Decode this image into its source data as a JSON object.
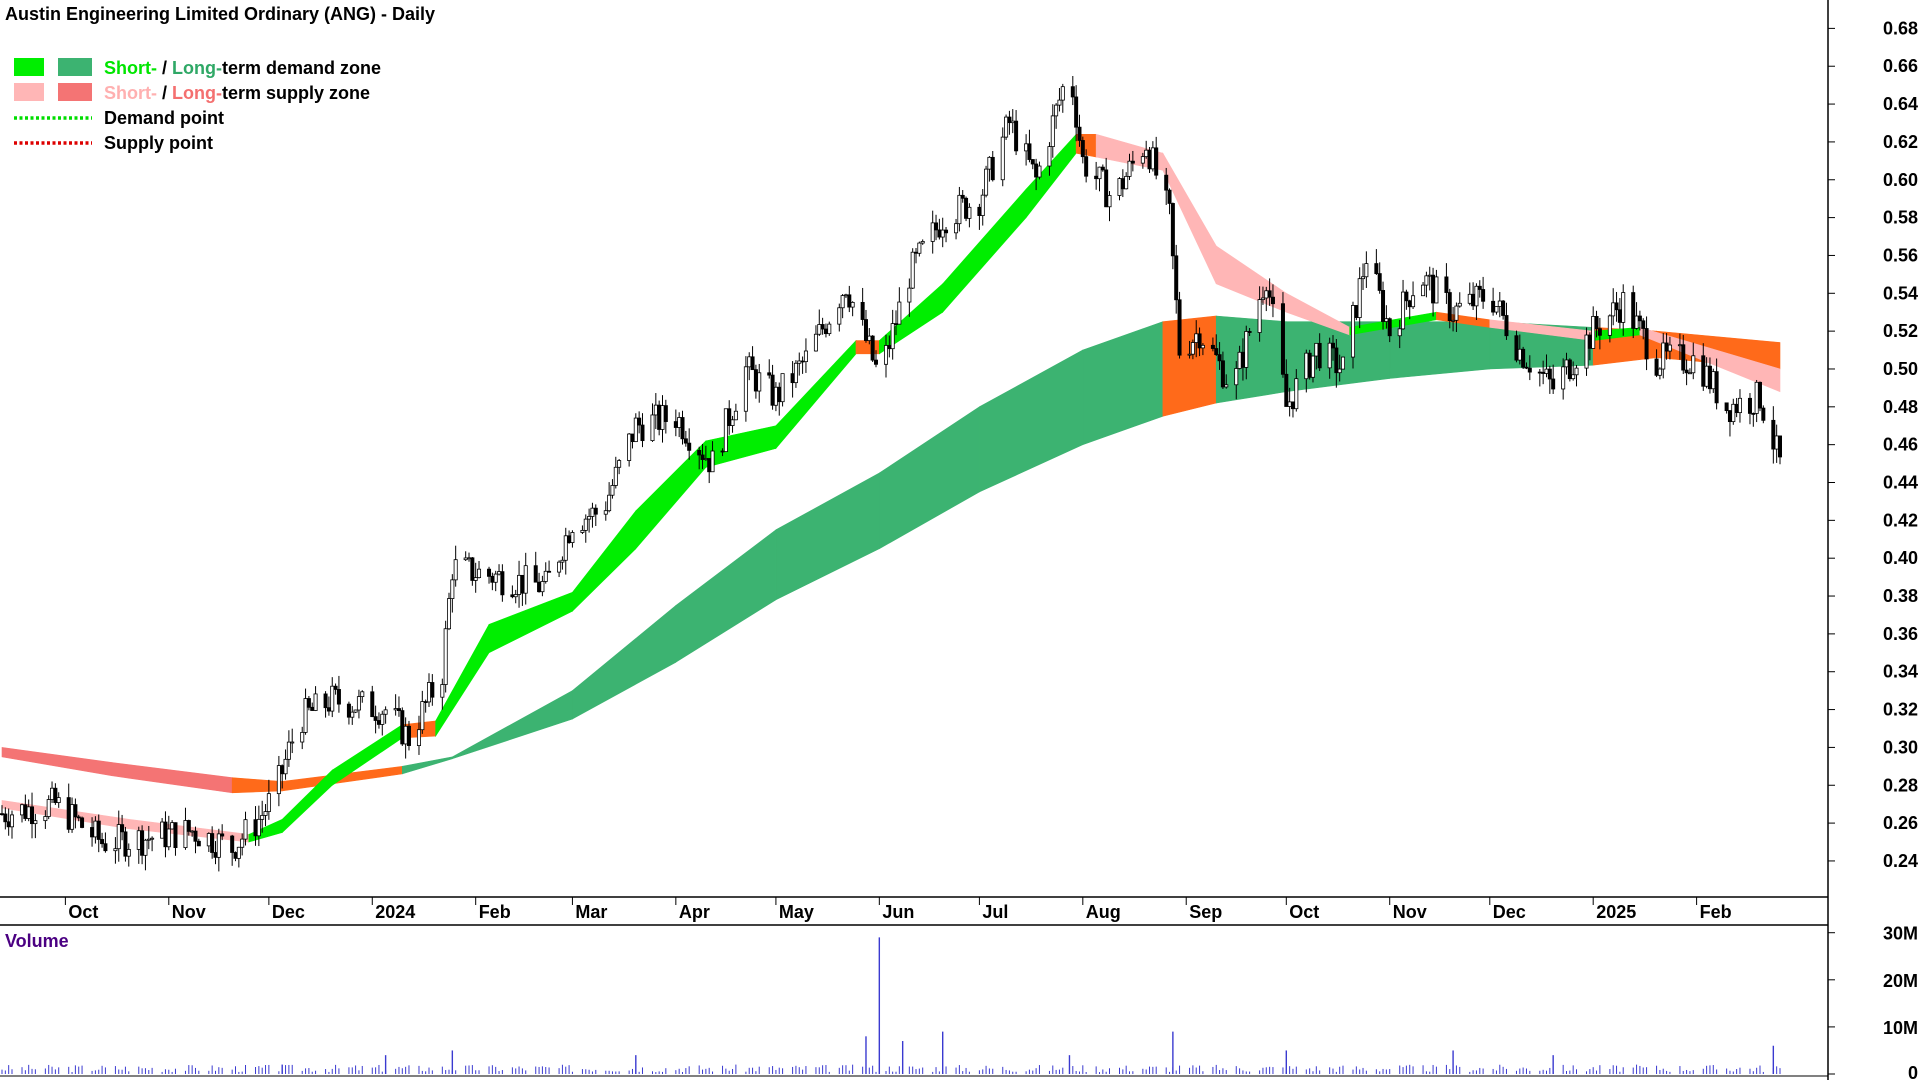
{
  "chart_data": {
    "type": "candlestick",
    "title": "Austin Engineering Limited Ordinary (ANG) - Daily",
    "legend": {
      "placement": "top-left",
      "items": [
        {
          "parts": [
            {
              "text": "Short-",
              "color": "#00e600"
            },
            {
              "text": " / ",
              "color": "#000000"
            },
            {
              "text": "Long-",
              "color": "#2fa866"
            },
            {
              "text": "term demand zone",
              "color": "#000000"
            }
          ],
          "swatches": [
            "#00ee00",
            "#3cb371"
          ],
          "kind": "zone"
        },
        {
          "parts": [
            {
              "text": "Short-",
              "color": "#ffb0b0"
            },
            {
              "text": " / ",
              "color": "#000000"
            },
            {
              "text": "Long-",
              "color": "#f47070"
            },
            {
              "text": "term supply zone",
              "color": "#000000"
            }
          ],
          "swatches": [
            "#ffb6b6",
            "#f47474"
          ],
          "kind": "zone"
        },
        {
          "parts": [
            {
              "text": "Demand point",
              "color": "#000000"
            }
          ],
          "swatches": [
            "#00dd00"
          ],
          "kind": "dots"
        },
        {
          "parts": [
            {
              "text": "Supply point",
              "color": "#000000"
            }
          ],
          "swatches": [
            "#dd0000"
          ],
          "kind": "dots"
        }
      ]
    },
    "y_axis": {
      "ticks": [
        "0.68",
        "0.66",
        "0.64",
        "0.62",
        "0.60",
        "0.58",
        "0.56",
        "0.54",
        "0.52",
        "0.50",
        "0.48",
        "0.46",
        "0.44",
        "0.42",
        "0.40",
        "0.38",
        "0.36",
        "0.34",
        "0.32",
        "0.30",
        "0.28",
        "0.26",
        "0.24"
      ],
      "ylim": [
        0.222,
        0.695
      ]
    },
    "x_axis": {
      "start": "2023-09-12",
      "end": "2025-02-26",
      "labels": [
        {
          "date": "2023-10-01",
          "text": "Oct"
        },
        {
          "date": "2023-11-01",
          "text": "Nov"
        },
        {
          "date": "2023-12-01",
          "text": "Dec"
        },
        {
          "date": "2024-01-01",
          "text": "2024"
        },
        {
          "date": "2024-02-01",
          "text": "Feb"
        },
        {
          "date": "2024-03-01",
          "text": "Mar"
        },
        {
          "date": "2024-04-01",
          "text": "Apr"
        },
        {
          "date": "2024-05-01",
          "text": "May"
        },
        {
          "date": "2024-06-01",
          "text": "Jun"
        },
        {
          "date": "2024-07-01",
          "text": "Jul"
        },
        {
          "date": "2024-08-01",
          "text": "Aug"
        },
        {
          "date": "2024-09-01",
          "text": "Sep"
        },
        {
          "date": "2024-10-01",
          "text": "Oct"
        },
        {
          "date": "2024-11-01",
          "text": "Nov"
        },
        {
          "date": "2024-12-01",
          "text": "Dec"
        },
        {
          "date": "2025-01-01",
          "text": "2025"
        },
        {
          "date": "2025-02-01",
          "text": "Feb"
        }
      ]
    },
    "price_path": [
      {
        "date": "2023-09-12",
        "close": 0.265
      },
      {
        "date": "2023-09-28",
        "close": 0.27
      },
      {
        "date": "2023-10-12",
        "close": 0.25
      },
      {
        "date": "2023-10-25",
        "close": 0.252
      },
      {
        "date": "2023-11-08",
        "close": 0.256
      },
      {
        "date": "2023-11-20",
        "close": 0.247
      },
      {
        "date": "2023-11-28",
        "close": 0.262
      },
      {
        "date": "2023-12-03",
        "close": 0.276
      },
      {
        "date": "2023-12-10",
        "close": 0.315
      },
      {
        "date": "2023-12-20",
        "close": 0.325
      },
      {
        "date": "2024-01-05",
        "close": 0.32
      },
      {
        "date": "2024-01-12",
        "close": 0.305
      },
      {
        "date": "2024-01-22",
        "close": 0.34
      },
      {
        "date": "2024-01-25",
        "close": 0.395
      },
      {
        "date": "2024-02-08",
        "close": 0.39
      },
      {
        "date": "2024-02-22",
        "close": 0.385
      },
      {
        "date": "2024-03-01",
        "close": 0.42
      },
      {
        "date": "2024-03-10",
        "close": 0.425
      },
      {
        "date": "2024-03-20",
        "close": 0.47
      },
      {
        "date": "2024-04-01",
        "close": 0.475
      },
      {
        "date": "2024-04-12",
        "close": 0.45
      },
      {
        "date": "2024-04-22",
        "close": 0.5
      },
      {
        "date": "2024-05-01",
        "close": 0.485
      },
      {
        "date": "2024-05-10",
        "close": 0.505
      },
      {
        "date": "2024-05-22",
        "close": 0.545
      },
      {
        "date": "2024-06-01",
        "close": 0.495
      },
      {
        "date": "2024-06-10",
        "close": 0.55
      },
      {
        "date": "2024-06-20",
        "close": 0.58
      },
      {
        "date": "2024-07-01",
        "close": 0.59
      },
      {
        "date": "2024-07-10",
        "close": 0.63
      },
      {
        "date": "2024-07-18",
        "close": 0.6
      },
      {
        "date": "2024-07-28",
        "close": 0.66
      },
      {
        "date": "2024-08-01",
        "close": 0.61
      },
      {
        "date": "2024-08-10",
        "close": 0.59
      },
      {
        "date": "2024-08-20",
        "close": 0.62
      },
      {
        "date": "2024-08-27",
        "close": 0.58
      },
      {
        "date": "2024-08-30",
        "close": 0.51
      },
      {
        "date": "2024-09-05",
        "close": 0.52
      },
      {
        "date": "2024-09-15",
        "close": 0.49
      },
      {
        "date": "2024-09-25",
        "close": 0.55
      },
      {
        "date": "2024-10-01",
        "close": 0.48
      },
      {
        "date": "2024-10-10",
        "close": 0.51
      },
      {
        "date": "2024-10-18",
        "close": 0.5
      },
      {
        "date": "2024-10-25",
        "close": 0.56
      },
      {
        "date": "2024-11-01",
        "close": 0.52
      },
      {
        "date": "2024-11-10",
        "close": 0.55
      },
      {
        "date": "2024-11-20",
        "close": 0.53
      },
      {
        "date": "2024-12-01",
        "close": 0.54
      },
      {
        "date": "2024-12-10",
        "close": 0.51
      },
      {
        "date": "2024-12-20",
        "close": 0.49
      },
      {
        "date": "2025-01-01",
        "close": 0.52
      },
      {
        "date": "2025-01-10",
        "close": 0.535
      },
      {
        "date": "2025-01-20",
        "close": 0.505
      },
      {
        "date": "2025-02-01",
        "close": 0.505
      },
      {
        "date": "2025-02-10",
        "close": 0.48
      },
      {
        "date": "2025-02-20",
        "close": 0.485
      },
      {
        "date": "2025-02-26",
        "close": 0.45
      }
    ],
    "short_term_zone": [
      {
        "date": "2023-09-12",
        "upper": 0.272,
        "lower": 0.268,
        "state": "supply"
      },
      {
        "date": "2023-10-20",
        "upper": 0.262,
        "lower": 0.257,
        "state": "supply"
      },
      {
        "date": "2023-11-25",
        "upper": 0.254,
        "lower": 0.25,
        "state": "supply"
      },
      {
        "date": "2023-12-05",
        "upper": 0.262,
        "lower": 0.255,
        "state": "demand"
      },
      {
        "date": "2023-12-20",
        "upper": 0.288,
        "lower": 0.28,
        "state": "demand"
      },
      {
        "date": "2024-01-10",
        "upper": 0.312,
        "lower": 0.305,
        "state": "demand"
      },
      {
        "date": "2024-01-20",
        "upper": 0.314,
        "lower": 0.306,
        "state": "neutral"
      },
      {
        "date": "2024-02-05",
        "upper": 0.365,
        "lower": 0.35,
        "state": "demand"
      },
      {
        "date": "2024-03-01",
        "upper": 0.382,
        "lower": 0.372,
        "state": "demand"
      },
      {
        "date": "2024-03-20",
        "upper": 0.425,
        "lower": 0.405,
        "state": "demand"
      },
      {
        "date": "2024-04-10",
        "upper": 0.462,
        "lower": 0.448,
        "state": "demand"
      },
      {
        "date": "2024-05-01",
        "upper": 0.47,
        "lower": 0.458,
        "state": "demand"
      },
      {
        "date": "2024-05-25",
        "upper": 0.515,
        "lower": 0.508,
        "state": "demand"
      },
      {
        "date": "2024-06-01",
        "upper": 0.515,
        "lower": 0.508,
        "state": "neutral"
      },
      {
        "date": "2024-06-20",
        "upper": 0.545,
        "lower": 0.53,
        "state": "demand"
      },
      {
        "date": "2024-07-15",
        "upper": 0.595,
        "lower": 0.58,
        "state": "demand"
      },
      {
        "date": "2024-07-30",
        "upper": 0.624,
        "lower": 0.614,
        "state": "demand"
      },
      {
        "date": "2024-08-05",
        "upper": 0.624,
        "lower": 0.612,
        "state": "neutral"
      },
      {
        "date": "2024-08-25",
        "upper": 0.614,
        "lower": 0.605,
        "state": "supply"
      },
      {
        "date": "2024-09-10",
        "upper": 0.565,
        "lower": 0.545,
        "state": "supply"
      },
      {
        "date": "2024-10-01",
        "upper": 0.54,
        "lower": 0.53,
        "state": "supply"
      },
      {
        "date": "2024-10-20",
        "upper": 0.522,
        "lower": 0.518,
        "state": "supply"
      },
      {
        "date": "2024-11-15",
        "upper": 0.53,
        "lower": 0.526,
        "state": "demand"
      },
      {
        "date": "2024-12-01",
        "upper": 0.526,
        "lower": 0.522,
        "state": "neutral"
      },
      {
        "date": "2025-01-01",
        "upper": 0.52,
        "lower": 0.515,
        "state": "supply"
      },
      {
        "date": "2025-01-15",
        "upper": 0.522,
        "lower": 0.518,
        "state": "demand"
      },
      {
        "date": "2025-02-26",
        "upper": 0.5,
        "lower": 0.488,
        "state": "supply"
      }
    ],
    "long_term_zone": [
      {
        "date": "2023-09-12",
        "upper": 0.3,
        "lower": 0.295,
        "state": "supply"
      },
      {
        "date": "2023-10-15",
        "upper": 0.292,
        "lower": 0.285,
        "state": "supply"
      },
      {
        "date": "2023-11-20",
        "upper": 0.284,
        "lower": 0.276,
        "state": "supply"
      },
      {
        "date": "2023-12-05",
        "upper": 0.282,
        "lower": 0.277,
        "state": "neutral"
      },
      {
        "date": "2024-01-10",
        "upper": 0.29,
        "lower": 0.286,
        "state": "neutral"
      },
      {
        "date": "2024-01-25",
        "upper": 0.295,
        "lower": 0.294,
        "state": "demand"
      },
      {
        "date": "2024-03-01",
        "upper": 0.33,
        "lower": 0.315,
        "state": "demand"
      },
      {
        "date": "2024-04-01",
        "upper": 0.375,
        "lower": 0.345,
        "state": "demand"
      },
      {
        "date": "2024-05-01",
        "upper": 0.415,
        "lower": 0.378,
        "state": "demand"
      },
      {
        "date": "2024-06-01",
        "upper": 0.445,
        "lower": 0.405,
        "state": "demand"
      },
      {
        "date": "2024-07-01",
        "upper": 0.48,
        "lower": 0.435,
        "state": "demand"
      },
      {
        "date": "2024-08-01",
        "upper": 0.51,
        "lower": 0.46,
        "state": "demand"
      },
      {
        "date": "2024-08-25",
        "upper": 0.525,
        "lower": 0.475,
        "state": "demand"
      },
      {
        "date": "2024-09-10",
        "upper": 0.528,
        "lower": 0.482,
        "state": "neutral"
      },
      {
        "date": "2024-10-01",
        "upper": 0.525,
        "lower": 0.488,
        "state": "demand"
      },
      {
        "date": "2024-11-01",
        "upper": 0.525,
        "lower": 0.495,
        "state": "demand"
      },
      {
        "date": "2024-12-01",
        "upper": 0.525,
        "lower": 0.5,
        "state": "demand"
      },
      {
        "date": "2025-01-01",
        "upper": 0.522,
        "lower": 0.502,
        "state": "demand"
      },
      {
        "date": "2025-01-20",
        "upper": 0.52,
        "lower": 0.506,
        "state": "neutral"
      },
      {
        "date": "2025-02-26",
        "upper": 0.514,
        "lower": 0.5,
        "state": "neutral"
      }
    ],
    "volume": {
      "title": "Volume",
      "ticks": [
        "30M",
        "20M",
        "10M",
        "0"
      ],
      "ylim": [
        0,
        31000000
      ],
      "spikes": [
        {
          "date": "2023-12-05",
          "value": 2000000
        },
        {
          "date": "2024-01-05",
          "value": 4000000
        },
        {
          "date": "2024-01-25",
          "value": 5000000
        },
        {
          "date": "2024-03-20",
          "value": 4000000
        },
        {
          "date": "2024-05-28",
          "value": 8000000
        },
        {
          "date": "2024-06-01",
          "value": 29000000
        },
        {
          "date": "2024-06-08",
          "value": 7000000
        },
        {
          "date": "2024-06-20",
          "value": 9000000
        },
        {
          "date": "2024-07-28",
          "value": 4000000
        },
        {
          "date": "2024-08-28",
          "value": 9000000
        },
        {
          "date": "2024-10-01",
          "value": 5000000
        },
        {
          "date": "2024-11-20",
          "value": 5000000
        },
        {
          "date": "2024-12-20",
          "value": 4000000
        },
        {
          "date": "2025-02-24",
          "value": 6000000
        }
      ],
      "baseline": 1000000
    },
    "colors": {
      "short_demand": "#00ee00",
      "long_demand": "#3cb371",
      "short_supply": "#ffb6b6",
      "long_supply": "#f47474",
      "neutral": "#ff6a1a",
      "volume": "#3a3ad0",
      "candle": "#000000"
    }
  }
}
